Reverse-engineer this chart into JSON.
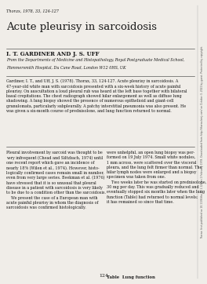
{
  "bg_color": "#f0ede8",
  "text_color": "#1a1a1a",
  "journal_header": "Thorax, 1978, 33, 124-127",
  "title": "Acute pleurisy in sarcoidosis",
  "authors": "I. T. GARDINER AND J. S. UFF",
  "affiliation1": "From the Departments of Medicine and Histopathology, Royal Postgraduate Medical School,",
  "affiliation2": "Hammersmith Hospital, Du Cane Road, London W12 0HS, UK",
  "page_number": "124",
  "sidebar_text": "Thorax: first published as 10.1136/thx.33.1.124 on 1 February 1978. Downloaded from http://thorax.bmj.com/ on October 3, 2021 by guest. Protected by copyright."
}
